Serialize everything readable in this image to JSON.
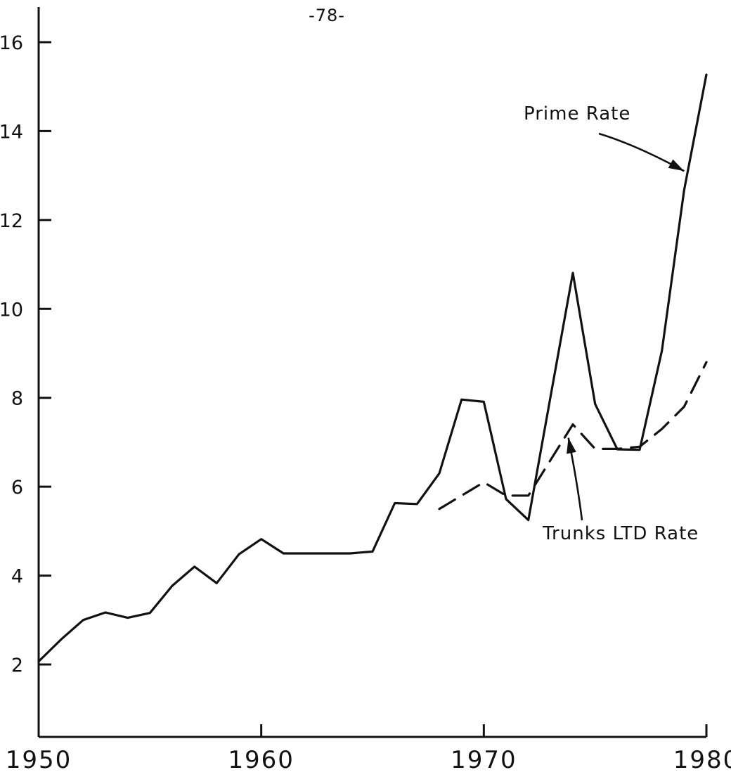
{
  "page": {
    "page_number": "-78-"
  },
  "chart_data": {
    "type": "line",
    "title": "",
    "xlabel": "",
    "ylabel": "",
    "xlim": [
      1950,
      1980
    ],
    "ylim": [
      0,
      17
    ],
    "x_ticks": [
      1950,
      1960,
      1970,
      1980
    ],
    "x_tick_labels": [
      "1950",
      "1960",
      "1970",
      "1980"
    ],
    "y_ticks": [
      2,
      4,
      6,
      8,
      10,
      12,
      14,
      16
    ],
    "y_tick_labels": [
      "2",
      "4",
      "6",
      "8",
      "10",
      "12",
      "14",
      "16"
    ],
    "grid": false,
    "series": [
      {
        "name": "Prime Rate",
        "style": "solid",
        "x": [
          1950,
          1951,
          1952,
          1953,
          1954,
          1955,
          1956,
          1957,
          1958,
          1959,
          1960,
          1961,
          1962,
          1963,
          1964,
          1965,
          1966,
          1967,
          1968,
          1969,
          1970,
          1971,
          1972,
          1973,
          1974,
          1975,
          1976,
          1977,
          1978,
          1979,
          1980
        ],
        "y": [
          2.07,
          2.56,
          3.0,
          3.17,
          3.05,
          3.16,
          3.77,
          4.2,
          3.83,
          4.48,
          4.82,
          4.5,
          4.5,
          4.5,
          4.5,
          4.54,
          5.63,
          5.61,
          6.3,
          7.96,
          7.91,
          5.72,
          5.25,
          8.03,
          10.81,
          7.86,
          6.84,
          6.83,
          9.06,
          12.67,
          15.27
        ]
      },
      {
        "name": "Trunks LTD Rate",
        "style": "dashed",
        "x": [
          1968,
          1969,
          1970,
          1971,
          1972,
          1973,
          1974,
          1975,
          1976,
          1977,
          1978,
          1979,
          1980
        ],
        "y": [
          5.5,
          5.8,
          6.1,
          5.8,
          5.8,
          6.6,
          7.4,
          6.85,
          6.85,
          6.9,
          7.3,
          7.8,
          8.8
        ]
      }
    ],
    "annotations": [
      {
        "text": "Prime Rate",
        "points_to": {
          "x": 1979,
          "y": 13.1
        }
      },
      {
        "text": "Trunks LTD Rate",
        "points_to": {
          "x": 1973.8,
          "y": 7.1
        }
      }
    ]
  }
}
